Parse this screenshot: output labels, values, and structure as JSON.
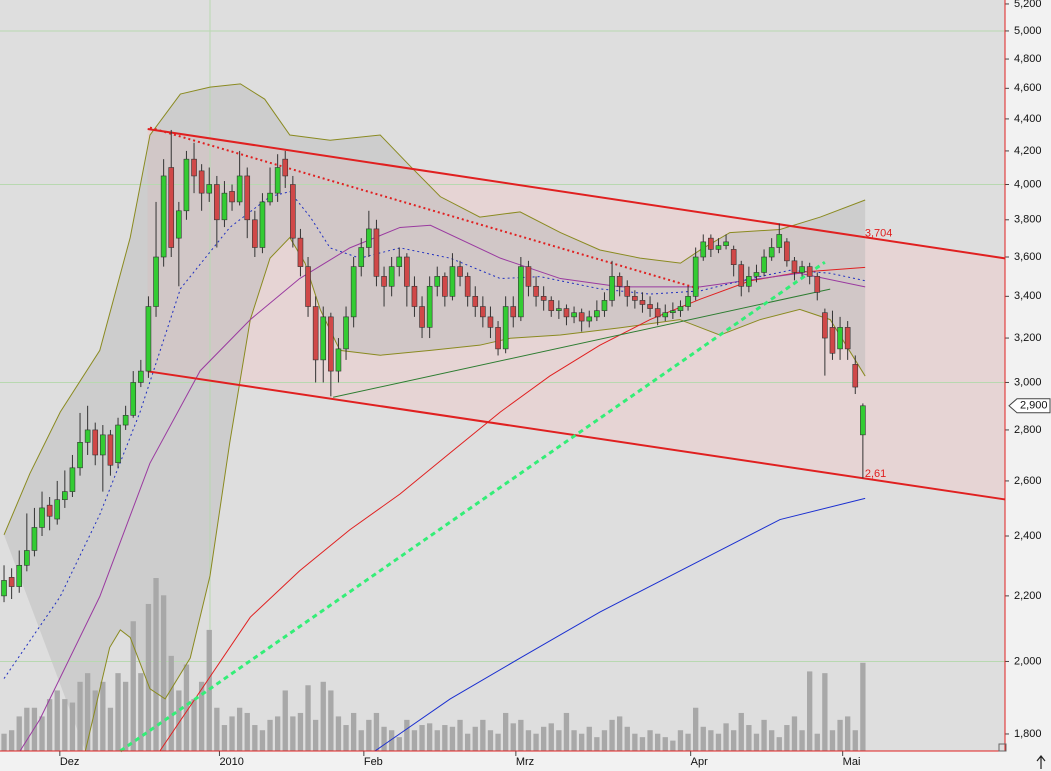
{
  "chart_data": {
    "type": "candlestick",
    "log_scale": true,
    "up_color": "#33cc33",
    "down_color": "#d04848",
    "edge_color": "#333333",
    "volume_color": "#a8a8a8",
    "open": [
      2200,
      2260,
      2230,
      2300,
      2350,
      2430,
      2510,
      2460,
      2530,
      2560,
      2650,
      2750,
      2800,
      2700,
      2780,
      2670,
      2820,
      2860,
      3000,
      3050,
      3350,
      3600,
      4100,
      3700,
      3850,
      4150,
      4080,
      3950,
      4000,
      3800,
      3960,
      3900,
      4050,
      3800,
      3650,
      3900,
      3950,
      4150,
      4000,
      3700,
      3550,
      3350,
      3100,
      3300,
      3050,
      3150,
      3300,
      3550,
      3650,
      3750,
      3500,
      3450,
      3550,
      3600,
      3450,
      3350,
      3250,
      3450,
      3500,
      3400,
      3550,
      3500,
      3400,
      3350,
      3300,
      3250,
      3150,
      3350,
      3300,
      3550,
      3450,
      3400,
      3380,
      3330,
      3340,
      3300,
      3320,
      3280,
      3300,
      3330,
      3380,
      3500,
      3450,
      3400,
      3380,
      3360,
      3340,
      3300,
      3320,
      3330,
      3350,
      3400,
      3600,
      3700,
      3640,
      3660,
      3640,
      3560,
      3450,
      3500,
      3520,
      3600,
      3650,
      3680,
      3580,
      3520,
      3550,
      3500,
      3320,
      3250,
      3150,
      3250,
      3080,
      2780
    ],
    "high": [
      2300,
      2290,
      2350,
      2480,
      2500,
      2560,
      2540,
      2600,
      2640,
      2700,
      2870,
      2900,
      2830,
      2820,
      2800,
      2850,
      2900,
      3050,
      3100,
      3400,
      3900,
      4150,
      4330,
      3900,
      4200,
      4250,
      4120,
      4100,
      4050,
      4020,
      4000,
      4200,
      4100,
      3850,
      3950,
      4100,
      4180,
      4200,
      4050,
      3750,
      3600,
      3400,
      3350,
      3320,
      3200,
      3350,
      3600,
      3700,
      3850,
      3800,
      3550,
      3600,
      3650,
      3620,
      3500,
      3400,
      3500,
      3550,
      3520,
      3620,
      3580,
      3520,
      3450,
      3400,
      3350,
      3280,
      3400,
      3400,
      3600,
      3580,
      3500,
      3450,
      3400,
      3380,
      3360,
      3350,
      3340,
      3330,
      3380,
      3420,
      3580,
      3520,
      3480,
      3430,
      3420,
      3400,
      3370,
      3360,
      3370,
      3380,
      3450,
      3650,
      3720,
      3720,
      3700,
      3720,
      3660,
      3580,
      3550,
      3560,
      3640,
      3700,
      3780,
      3700,
      3600,
      3580,
      3570,
      3520,
      3340,
      3330,
      3300,
      3280,
      3120,
      2910
    ],
    "low": [
      2180,
      2190,
      2210,
      2280,
      2330,
      2400,
      2420,
      2440,
      2500,
      2540,
      2620,
      2700,
      2660,
      2560,
      2620,
      2650,
      2800,
      2850,
      2980,
      3020,
      3300,
      3550,
      3600,
      3450,
      3800,
      3950,
      3850,
      3900,
      3650,
      3760,
      3850,
      3880,
      3700,
      3600,
      3620,
      3880,
      3900,
      3980,
      3650,
      3500,
      3300,
      3000,
      3000,
      2940,
      3000,
      3100,
      3250,
      3500,
      3600,
      3450,
      3350,
      3400,
      3500,
      3350,
      3300,
      3200,
      3200,
      3400,
      3350,
      3380,
      3450,
      3350,
      3300,
      3250,
      3200,
      3120,
      3130,
      3250,
      3280,
      3400,
      3350,
      3330,
      3300,
      3290,
      3260,
      3270,
      3230,
      3250,
      3280,
      3300,
      3350,
      3400,
      3350,
      3340,
      3320,
      3300,
      3260,
      3280,
      3290,
      3300,
      3330,
      3380,
      3580,
      3600,
      3620,
      3640,
      3500,
      3400,
      3420,
      3470,
      3500,
      3580,
      3620,
      3550,
      3480,
      3500,
      3460,
      3380,
      3030,
      3100,
      3100,
      3100,
      2950,
      2610
    ],
    "close": [
      2250,
      2230,
      2300,
      2350,
      2430,
      2500,
      2470,
      2530,
      2560,
      2650,
      2750,
      2800,
      2700,
      2780,
      2660,
      2820,
      2860,
      3000,
      3050,
      3350,
      3600,
      4050,
      3650,
      3850,
      4150,
      4050,
      3950,
      4000,
      3800,
      3950,
      3900,
      4050,
      3800,
      3650,
      3900,
      3950,
      4100,
      4050,
      3700,
      3550,
      3350,
      3100,
      3300,
      3050,
      3150,
      3300,
      3550,
      3650,
      3750,
      3500,
      3450,
      3550,
      3600,
      3450,
      3350,
      3250,
      3450,
      3500,
      3400,
      3550,
      3500,
      3400,
      3350,
      3300,
      3250,
      3150,
      3350,
      3300,
      3550,
      3450,
      3400,
      3380,
      3330,
      3340,
      3300,
      3320,
      3280,
      3300,
      3330,
      3380,
      3500,
      3450,
      3400,
      3380,
      3360,
      3340,
      3300,
      3320,
      3330,
      3350,
      3400,
      3600,
      3680,
      3640,
      3660,
      3680,
      3560,
      3450,
      3500,
      3520,
      3600,
      3650,
      3720,
      3580,
      3520,
      3550,
      3500,
      3420,
      3200,
      3130,
      3250,
      3150,
      2980,
      2900
    ],
    "volume": [
      10,
      12,
      20,
      25,
      25,
      20,
      30,
      35,
      30,
      28,
      40,
      45,
      35,
      40,
      25,
      45,
      40,
      75,
      45,
      85,
      100,
      90,
      55,
      35,
      50,
      30,
      40,
      70,
      25,
      15,
      20,
      25,
      22,
      15,
      12,
      18,
      20,
      35,
      20,
      22,
      38,
      18,
      40,
      35,
      20,
      15,
      22,
      12,
      18,
      22,
      14,
      12,
      8,
      18,
      12,
      15,
      16,
      12,
      15,
      14,
      18,
      10,
      14,
      18,
      12,
      10,
      22,
      16,
      18,
      12,
      10,
      14,
      16,
      12,
      22,
      12,
      10,
      14,
      8,
      12,
      18,
      20,
      14,
      10,
      8,
      12,
      10,
      8,
      6,
      12,
      10,
      25,
      14,
      12,
      10,
      16,
      12,
      22,
      15,
      10,
      18,
      12,
      8,
      15,
      20,
      12,
      46,
      10,
      45,
      12,
      18,
      20,
      12,
      51
    ],
    "xlim": [
      -0.53,
      131.7
    ],
    "ylim": [
      1756,
      5230
    ],
    "y2lim": [
      0,
      100
    ],
    "xticks": [
      {
        "value": 8,
        "label": "Dez"
      },
      {
        "value": 29,
        "label": "2010"
      },
      {
        "value": 48,
        "label": "Feb"
      },
      {
        "value": 68,
        "label": "Mrz"
      },
      {
        "value": 91,
        "label": "Apr"
      },
      {
        "value": 111,
        "label": "Mai"
      }
    ],
    "yticks": [
      {
        "value": 1800,
        "label": "1,800"
      },
      {
        "value": 2000,
        "label": "2,000"
      },
      {
        "value": 2200,
        "label": "2,200"
      },
      {
        "value": 2400,
        "label": "2,400"
      },
      {
        "value": 2600,
        "label": "2,600"
      },
      {
        "value": 2800,
        "label": "2,800"
      },
      {
        "value": 3000,
        "label": "3,000"
      },
      {
        "value": 3200,
        "label": "3,200"
      },
      {
        "value": 3400,
        "label": "3,400"
      },
      {
        "value": 3600,
        "label": "3,600"
      },
      {
        "value": 3800,
        "label": "3,800"
      },
      {
        "value": 4000,
        "label": "4,000"
      },
      {
        "value": 4200,
        "label": "4,200"
      },
      {
        "value": 4400,
        "label": "4,400"
      },
      {
        "value": 4600,
        "label": "4,600"
      },
      {
        "value": 4800,
        "label": "4,800"
      },
      {
        "value": 5000,
        "label": "5,000"
      },
      {
        "value": 5200,
        "label": "5,200"
      }
    ],
    "grid_y": [
      2000,
      3000,
      4000,
      5000
    ],
    "grid_x": [
      27.1
    ],
    "grid_color": "#b8d8b0",
    "bollinger": {
      "color": "#8a8a20",
      "fill": "#b8b8b8",
      "upper": [
        [
          0,
          2404
        ],
        [
          3.4,
          2628
        ],
        [
          7.4,
          2874
        ],
        [
          12.6,
          3143
        ],
        [
          16.6,
          3703
        ],
        [
          19.2,
          4298
        ],
        [
          23.2,
          4562
        ],
        [
          27.1,
          4608
        ],
        [
          31.1,
          4630
        ],
        [
          34.3,
          4528
        ],
        [
          37.6,
          4298
        ],
        [
          42.9,
          4266
        ],
        [
          49.5,
          4298
        ],
        [
          53.4,
          4110
        ],
        [
          57.4,
          3930
        ],
        [
          62.6,
          3815
        ],
        [
          67.9,
          3844
        ],
        [
          73.2,
          3730
        ],
        [
          78.4,
          3637
        ],
        [
          83.7,
          3594
        ],
        [
          89,
          3568
        ],
        [
          91.6,
          3637
        ],
        [
          95.5,
          3730
        ],
        [
          102.1,
          3747
        ],
        [
          107.4,
          3815
        ],
        [
          113.3,
          3911
        ]
      ],
      "lower": [
        [
          10.7,
          1756
        ],
        [
          13.9,
          2041
        ],
        [
          15.3,
          2094
        ],
        [
          16.6,
          2071
        ],
        [
          19.2,
          1922
        ],
        [
          21.2,
          1894
        ],
        [
          24.5,
          2010
        ],
        [
          27.1,
          2265
        ],
        [
          29.7,
          2749
        ],
        [
          32.4,
          3287
        ],
        [
          35,
          3594
        ],
        [
          37.6,
          3703
        ],
        [
          39.6,
          3568
        ],
        [
          41.6,
          3336
        ],
        [
          44.2,
          3143
        ],
        [
          49.5,
          3121
        ],
        [
          56.1,
          3143
        ],
        [
          62.6,
          3167
        ],
        [
          66.6,
          3199
        ],
        [
          73.2,
          3214
        ],
        [
          81.1,
          3248
        ],
        [
          88.9,
          3287
        ],
        [
          94.2,
          3214
        ],
        [
          99.5,
          3287
        ],
        [
          104.7,
          3336
        ],
        [
          108.7,
          3287
        ],
        [
          113.3,
          3028
        ]
      ]
    },
    "overlays": [
      {
        "color": "#1a2fd0",
        "width": 1,
        "style": "solid",
        "points": [
          [
            48.8,
            1756
          ],
          [
            58.7,
            1894
          ],
          [
            67.9,
            2010
          ],
          [
            78.4,
            2149
          ],
          [
            91.6,
            2316
          ],
          [
            102.1,
            2458
          ],
          [
            113.3,
            2535
          ]
        ]
      },
      {
        "color": "#e02020",
        "width": 1,
        "style": "solid",
        "points": [
          [
            20.5,
            1756
          ],
          [
            32.4,
            2133
          ],
          [
            38.9,
            2282
          ],
          [
            45.5,
            2422
          ],
          [
            52.1,
            2551
          ],
          [
            58.7,
            2708
          ],
          [
            65.3,
            2874
          ],
          [
            71.8,
            3028
          ],
          [
            78.4,
            3167
          ],
          [
            85,
            3287
          ],
          [
            91.6,
            3386
          ],
          [
            98.2,
            3478
          ],
          [
            104.7,
            3521
          ],
          [
            113.3,
            3546
          ]
        ]
      },
      {
        "color": "#9a3aa0",
        "width": 1,
        "style": "solid",
        "points": [
          [
            2.1,
            1756
          ],
          [
            4.7,
            1838
          ],
          [
            12.6,
            2198
          ],
          [
            19.2,
            2668
          ],
          [
            25.8,
            3051
          ],
          [
            32.4,
            3287
          ],
          [
            38.9,
            3489
          ],
          [
            45.5,
            3648
          ],
          [
            52.1,
            3758
          ],
          [
            56.1,
            3770
          ],
          [
            65.3,
            3594
          ],
          [
            73.2,
            3489
          ],
          [
            81.1,
            3447
          ],
          [
            91.6,
            3447
          ],
          [
            99.5,
            3489
          ],
          [
            104.7,
            3516
          ],
          [
            113.3,
            3447
          ]
        ]
      },
      {
        "color": "#2030c0",
        "width": 1,
        "style": "dotted",
        "points": [
          [
            0,
            1951
          ],
          [
            7.4,
            2198
          ],
          [
            12.6,
            2476
          ],
          [
            17.9,
            2874
          ],
          [
            23.2,
            3437
          ],
          [
            29.7,
            3758
          ],
          [
            35,
            3930
          ],
          [
            37.6,
            3959
          ],
          [
            40.3,
            3815
          ],
          [
            42.9,
            3648
          ],
          [
            46.8,
            3594
          ],
          [
            52.1,
            3648
          ],
          [
            58.7,
            3594
          ],
          [
            65.3,
            3489
          ],
          [
            70.5,
            3499
          ],
          [
            78.4,
            3437
          ],
          [
            85,
            3411
          ],
          [
            91.6,
            3427
          ],
          [
            98.2,
            3489
          ],
          [
            103.4,
            3531
          ],
          [
            108.7,
            3516
          ],
          [
            113.3,
            3478
          ]
        ]
      }
    ],
    "channel_fill": "#f0c8c8",
    "trendlines": [
      {
        "color": "#e02020",
        "width": 2,
        "style": "solid",
        "points": [
          [
            18.9,
            4336
          ],
          [
            131.7,
            3593
          ]
        ]
      },
      {
        "color": "#e02020",
        "width": 2,
        "style": "solid",
        "points": [
          [
            18.9,
            3049
          ],
          [
            131.7,
            2531
          ]
        ]
      },
      {
        "color": "#e02020",
        "width": 2,
        "style": "dotted",
        "points": [
          [
            19.2,
            4345
          ],
          [
            91.6,
            3436
          ]
        ]
      },
      {
        "color": "#2e7d32",
        "width": 1,
        "style": "solid",
        "points": [
          [
            43.3,
            2936
          ],
          [
            108.7,
            3436
          ]
        ]
      },
      {
        "color": "#33ee77",
        "width": 3,
        "style": "dashed",
        "points": [
          [
            15.3,
            1756
          ],
          [
            108,
            3573
          ]
        ]
      }
    ],
    "annotations": [
      {
        "value": 3704,
        "label": "3,704",
        "color": "#e02020"
      },
      {
        "value": 2610,
        "label": "2,61",
        "color": "#e02020"
      }
    ],
    "last_price": {
      "value": 2900,
      "label": "2,900"
    }
  }
}
